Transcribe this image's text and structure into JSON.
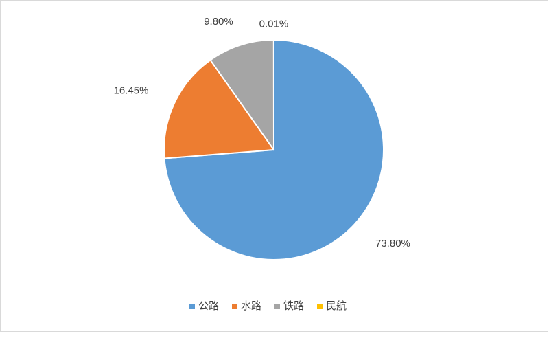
{
  "chart_data": {
    "type": "pie",
    "categories": [
      "公路",
      "水路",
      "铁路",
      "民航"
    ],
    "values": [
      73.8,
      16.45,
      9.8,
      0.01
    ],
    "value_labels": [
      "73.80%",
      "16.45%",
      "9.80%",
      "0.01%"
    ],
    "colors": [
      "#5b9bd5",
      "#ed7d31",
      "#a5a5a5",
      "#ffc000"
    ],
    "legend": "bottom"
  }
}
